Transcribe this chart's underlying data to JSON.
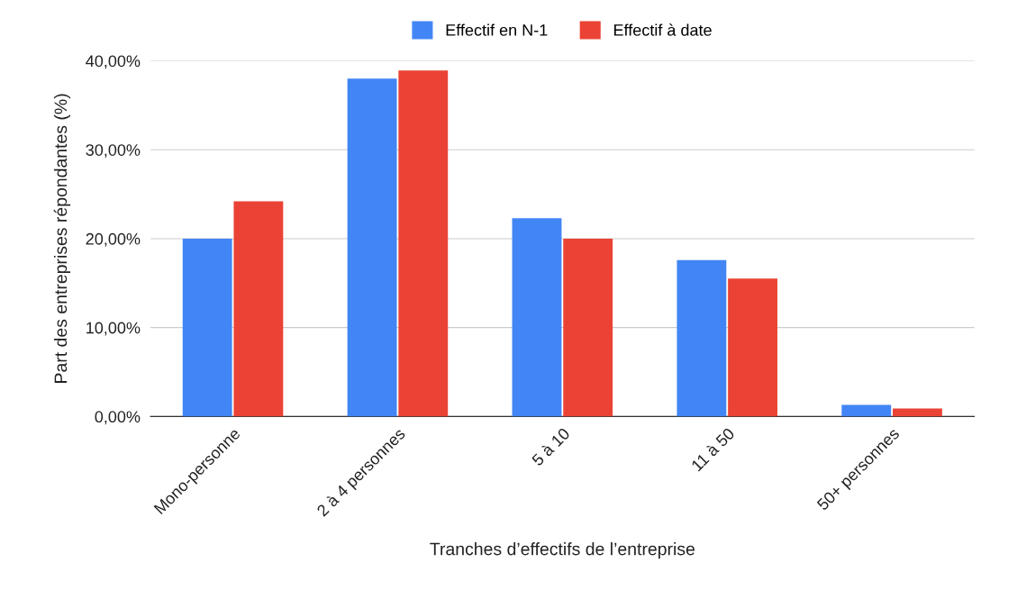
{
  "chart_data": {
    "type": "bar",
    "categories": [
      "Mono-personne",
      "2 à 4 personnes",
      "5 à 10",
      "11 à 50",
      "50+ personnes"
    ],
    "series": [
      {
        "name": "Effectif en N-1",
        "color": "#4285f4",
        "values": [
          20.0,
          38.0,
          22.3,
          17.6,
          1.3
        ]
      },
      {
        "name": "Effectif à date",
        "color": "#ea4335",
        "values": [
          24.2,
          38.9,
          20.0,
          15.5,
          0.9
        ]
      }
    ],
    "xlabel": "Tranches d’effectifs de l’entreprise",
    "ylabel": "Part des entreprises répondantes (%)",
    "ylim": [
      0,
      40
    ],
    "yticks": [
      {
        "value": 0,
        "label": "0,00%"
      },
      {
        "value": 10,
        "label": "10,00%"
      },
      {
        "value": 20,
        "label": "20,00%"
      },
      {
        "value": 30,
        "label": "30,00%"
      },
      {
        "value": 40,
        "label": "40,00%"
      }
    ],
    "grid": "y",
    "legend": "top"
  }
}
